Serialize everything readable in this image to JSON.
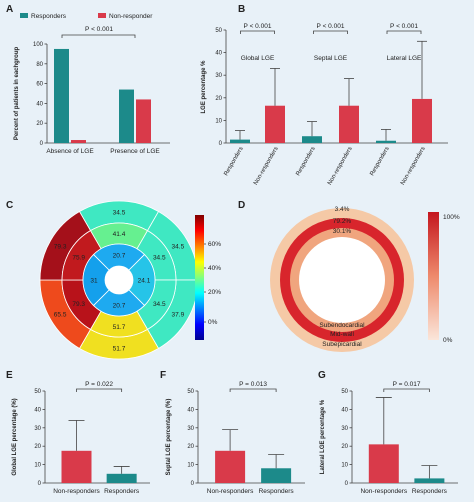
{
  "chart_data": [
    {
      "panel": "A",
      "type": "bar",
      "categories": [
        "Absence of LGE",
        "Presence of LGE"
      ],
      "series": [
        {
          "name": "Responders",
          "values": [
            95,
            54
          ],
          "color": "#1c8a8a"
        },
        {
          "name": "Non-responder",
          "values": [
            3,
            44
          ],
          "color": "#d93a4a"
        }
      ],
      "ylabel": "Percent of patients in eachgroup",
      "ylim": [
        0,
        100
      ],
      "yticks": [
        "0",
        "20",
        "40",
        "60",
        "80",
        "100"
      ],
      "annotation": "P < 0.001",
      "legend": "top"
    },
    {
      "panel": "B",
      "type": "bar",
      "groups": [
        "Global LGE",
        "Septal LGE",
        "Lateral LGE"
      ],
      "categories": [
        "Responders",
        "Non-responders",
        "Responders",
        "Non-responders",
        "Responders",
        "Non-responders"
      ],
      "values": [
        1.5,
        16.5,
        3,
        16.5,
        1,
        19.5
      ],
      "error_upper": [
        5.5,
        33,
        9.5,
        28.5,
        6,
        45
      ],
      "colors": [
        "#1c8a8a",
        "#d93a4a",
        "#1c8a8a",
        "#d93a4a",
        "#1c8a8a",
        "#d93a4a"
      ],
      "ylabel": "LGE percentage %",
      "ylim": [
        0,
        50
      ],
      "yticks": [
        "0",
        "10",
        "20",
        "30",
        "40",
        "50"
      ],
      "annotations": [
        "P < 0.001",
        "P < 0.001",
        "P < 0.001"
      ]
    },
    {
      "panel": "C",
      "type": "bullseye",
      "outer_values": [
        "34.5",
        "34.5",
        "37.9",
        "51.7",
        "65.5",
        "79.3"
      ],
      "outer_colors": [
        "#3fe8c2",
        "#3fe8c2",
        "#3fe8c2",
        "#f0e020",
        "#ee4a1c",
        "#a4101a"
      ],
      "mid_values": [
        "41.4",
        "34.5",
        "34.5",
        "51.7",
        "79.3",
        "75.9"
      ],
      "mid_colors": [
        "#66f090",
        "#3fe8c2",
        "#3fe8c2",
        "#f0e020",
        "#b8121a",
        "#c11a1e"
      ],
      "inner_values": [
        "20.7",
        "24.1",
        "20.7",
        "31"
      ],
      "inner_colors": [
        "#1eaaf0",
        "#26c4e8",
        "#1eaaf0",
        "#14a0ec"
      ],
      "colorbar_ticks": [
        "0%",
        "20%",
        "40%",
        "60%"
      ]
    },
    {
      "panel": "D",
      "type": "ring",
      "layers": [
        {
          "label": "Subendocardial",
          "value": "3.4%",
          "color": "#f5c9a6"
        },
        {
          "label": "Mid-wall",
          "value": "79.2%",
          "color": "#d8252c"
        },
        {
          "label": "Subepicardial",
          "value": "30.1%",
          "color": "#f0a57e"
        }
      ],
      "colorbar_ticks": [
        "100%",
        "0%"
      ]
    },
    {
      "panel": "E",
      "type": "bar",
      "categories": [
        "Non-responders",
        "Responders"
      ],
      "values": [
        17.5,
        5
      ],
      "error_upper": [
        34,
        9
      ],
      "colors": [
        "#d93a4a",
        "#1c8a8a"
      ],
      "ylabel": "Global LGE percentage (%)",
      "ylim": [
        0,
        50
      ],
      "yticks": [
        "0",
        "10",
        "20",
        "30",
        "40",
        "50"
      ],
      "annotation": "P = 0.022"
    },
    {
      "panel": "F",
      "type": "bar",
      "categories": [
        "Non-responders",
        "Responders"
      ],
      "values": [
        17.5,
        8
      ],
      "error_upper": [
        29,
        15.5
      ],
      "colors": [
        "#d93a4a",
        "#1c8a8a"
      ],
      "ylabel": "Septal LGE percentage (%)",
      "ylim": [
        0,
        50
      ],
      "yticks": [
        "0",
        "10",
        "20",
        "30",
        "40",
        "50"
      ],
      "annotation": "P = 0.013"
    },
    {
      "panel": "G",
      "type": "bar",
      "categories": [
        "Non-responders",
        "Responders"
      ],
      "values": [
        21,
        2.5
      ],
      "error_upper": [
        46.5,
        9.5
      ],
      "colors": [
        "#d93a4a",
        "#1c8a8a"
      ],
      "ylabel": "Lateral LGE percentage %",
      "ylim": [
        0,
        50
      ],
      "yticks": [
        "0",
        "10",
        "20",
        "30",
        "40",
        "50"
      ],
      "annotation": "P = 0.017"
    }
  ]
}
